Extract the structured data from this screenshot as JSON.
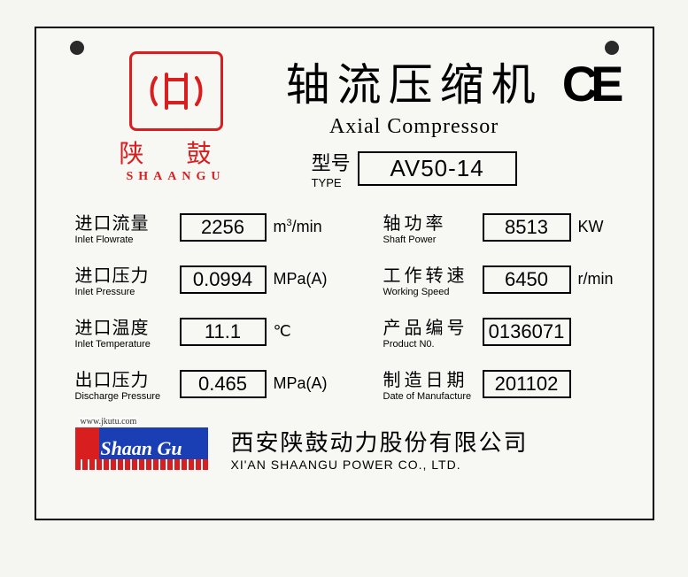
{
  "brand": {
    "cn": "陕鼓",
    "en": "SHAANGU",
    "logo_color": "#d81e1e"
  },
  "title": {
    "cn": "轴流压缩机",
    "en": "Axial Compressor"
  },
  "ce_mark": "CE",
  "type": {
    "label_cn": "型号",
    "label_en": "TYPE",
    "value": "AV50-14"
  },
  "specs_left": [
    {
      "label_cn": "进口流量",
      "label_en": "Inlet Flowrate",
      "value": "2256",
      "unit": "m³/min"
    },
    {
      "label_cn": "进口压力",
      "label_en": "Inlet Pressure",
      "value": "0.0994",
      "unit": "MPa(A)"
    },
    {
      "label_cn": "进口温度",
      "label_en": "Inlet Temperature",
      "value": "11.1",
      "unit": "℃"
    },
    {
      "label_cn": "出口压力",
      "label_en": "Discharge Pressure",
      "value": "0.465",
      "unit": "MPa(A)"
    }
  ],
  "specs_right": [
    {
      "label_cn": "轴功率",
      "label_en": "Shaft Power",
      "value": "8513",
      "unit": "KW"
    },
    {
      "label_cn": "工作转速",
      "label_en": "Working Speed",
      "value": "6450",
      "unit": "r/min"
    },
    {
      "label_cn": "产品编号",
      "label_en": "Product N0.",
      "value": "0136071",
      "unit": ""
    },
    {
      "label_cn": "制造日期",
      "label_en": "Date of Manufacture",
      "value": "201102",
      "unit": ""
    }
  ],
  "footer": {
    "logo_text": "Shaan Gu",
    "url": "www.jkutu.com",
    "company_cn": "西安陕鼓动力股份有限公司",
    "company_en": "XI'AN SHAANGU POWER CO., LTD."
  },
  "colors": {
    "border": "#000000",
    "background": "#f7f7f4",
    "red": "#d81e1e",
    "blue": "#1a3fb5"
  }
}
